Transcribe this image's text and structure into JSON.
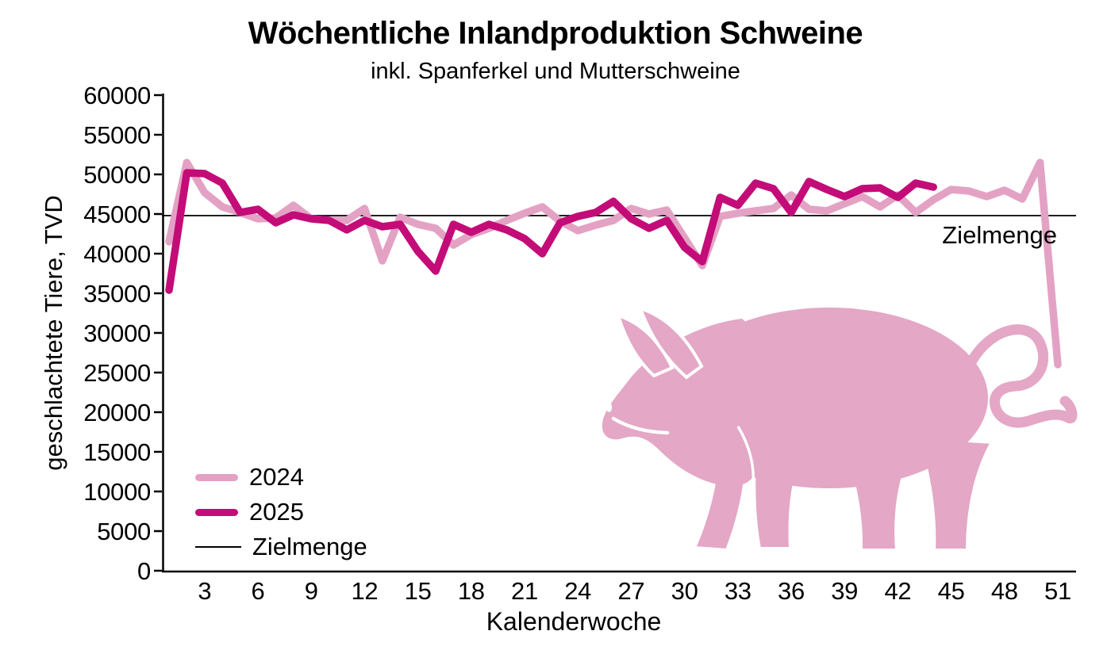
{
  "chart_data": {
    "type": "line",
    "title": "Wöchentliche Inlandproduktion Schweine",
    "subtitle": "inkl. Spanferkel und Mutterschweine",
    "xlabel": "Kalenderwoche",
    "ylabel": "geschlachtete Tiere, TVD",
    "ylim": [
      0,
      60000
    ],
    "xlim_weeks": [
      1,
      52
    ],
    "yticks": [
      0,
      5000,
      10000,
      15000,
      20000,
      25000,
      30000,
      35000,
      40000,
      45000,
      50000,
      55000,
      60000
    ],
    "xticks": [
      3,
      6,
      9,
      12,
      15,
      18,
      21,
      24,
      27,
      30,
      33,
      36,
      39,
      42,
      45,
      48,
      51
    ],
    "grid": false,
    "legend_position": "lower-left",
    "series": [
      {
        "name": "2024",
        "color": "#E3A2C4",
        "start_week": 1,
        "values": [
          41500,
          51500,
          47700,
          45900,
          45200,
          44400,
          44500,
          46100,
          44400,
          44200,
          44200,
          45700,
          39100,
          44600,
          43700,
          43200,
          41100,
          42400,
          43200,
          44200,
          45100,
          45900,
          44100,
          42900,
          43600,
          44200,
          45700,
          45000,
          45500,
          42000,
          38500,
          44700,
          45100,
          45400,
          45700,
          47400,
          45600,
          45400,
          46300,
          47200,
          45900,
          47400,
          45200,
          46800,
          48100,
          47900,
          47200,
          48000,
          46900,
          51500,
          26000
        ]
      },
      {
        "name": "2025",
        "color": "#C30C78",
        "start_week": 1,
        "values": [
          35400,
          50200,
          50100,
          48900,
          45200,
          45600,
          43900,
          44900,
          44400,
          44200,
          43000,
          44200,
          43400,
          43700,
          40300,
          37800,
          43700,
          42700,
          43700,
          43000,
          41900,
          40000,
          43900,
          44700,
          45200,
          46600,
          44400,
          43200,
          44200,
          40800,
          39000,
          47100,
          46100,
          48900,
          48200,
          45200,
          49100,
          48100,
          47200,
          48200,
          48300,
          47100,
          48900,
          48400
        ]
      }
    ],
    "target": {
      "label": "Zielmenge",
      "value": 44800,
      "color": "#000000"
    }
  },
  "decorations": {
    "pig_color": "#E4A7C6"
  }
}
